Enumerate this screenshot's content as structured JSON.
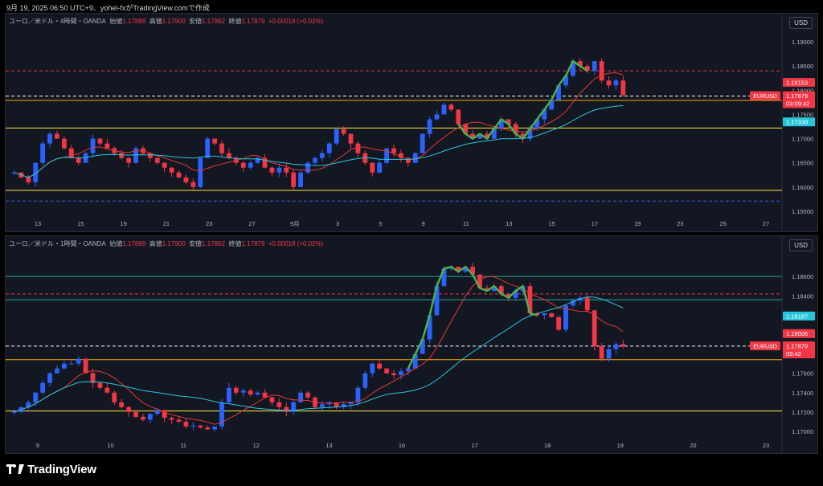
{
  "header_text": "9月 19, 2025 06:50 UTC+9、yohei-fxがTradingView.comで作成",
  "brand": "TradingView",
  "colors": {
    "up": "#26a69a",
    "bull": "#2962ff",
    "bear": "#f23645",
    "orange": "#f7a600",
    "yellow": "#ffeb3b",
    "teal": "#26c6da",
    "green": "#4caf50",
    "price": "#f23645"
  },
  "chart_data": [
    {
      "type": "candlestick",
      "symbol": "ユーロ／米ドル・4時間・OANDA",
      "ohlc": {
        "open_label": "始値",
        "open": "1.17889",
        "high_label": "高値",
        "high": "1.17900",
        "low_label": "安値",
        "low": "1.17862",
        "close_label": "終値",
        "close": "1.17879",
        "change": "+0.00018 (+0.02%)"
      },
      "currency": "USD",
      "y_ticks": [
        "1.19000",
        "1.18500",
        "1.18000",
        "1.17500",
        "1.17000",
        "1.16500",
        "1.16000",
        "1.15500"
      ],
      "y_range": [
        1.1535,
        1.1935
      ],
      "x_ticks": [
        "13",
        "15",
        "19",
        "21",
        "23",
        "27",
        "9月",
        "3",
        "5",
        "9",
        "11",
        "13",
        "15",
        "17",
        "19",
        "23",
        "25",
        "27"
      ],
      "price_labels": [
        {
          "text": "1.18153",
          "value": 1.18153,
          "color": "#f23645"
        },
        {
          "text": "1.17879",
          "value": 1.17879,
          "color": "#f23645",
          "symbol": "EURUSD",
          "timer": "03:09:42"
        },
        {
          "text": "1.17338",
          "value": 1.17338,
          "color": "#26c6da"
        }
      ],
      "hlines": [
        {
          "value": 1.184,
          "color": "#f23645",
          "style": "dashed"
        },
        {
          "value": 1.1788,
          "color": "#ffffff",
          "style": "dashed"
        },
        {
          "value": 1.1779,
          "color": "#f7a600",
          "style": "solid"
        },
        {
          "value": 1.1722,
          "color": "#ffeb3b",
          "style": "solid"
        },
        {
          "value": 1.1593,
          "color": "#ffeb3b",
          "style": "solid"
        },
        {
          "value": 1.1571,
          "color": "#2962ff",
          "style": "dashed"
        }
      ],
      "path": [
        1.163,
        1.162,
        1.161,
        1.165,
        1.169,
        1.171,
        1.17,
        1.168,
        1.166,
        1.165,
        1.167,
        1.17,
        1.169,
        1.168,
        1.167,
        1.166,
        1.165,
        1.168,
        1.167,
        1.166,
        1.165,
        1.164,
        1.163,
        1.162,
        1.161,
        1.16,
        1.166,
        1.17,
        1.169,
        1.167,
        1.166,
        1.165,
        1.164,
        1.165,
        1.166,
        1.164,
        1.163,
        1.164,
        1.163,
        1.16,
        1.163,
        1.165,
        1.166,
        1.167,
        1.169,
        1.172,
        1.171,
        1.169,
        1.167,
        1.165,
        1.163,
        1.165,
        1.168,
        1.167,
        1.166,
        1.165,
        1.167,
        1.171,
        1.174,
        1.175,
        1.177,
        1.176,
        1.173,
        1.171,
        1.17,
        1.171,
        1.17,
        1.172,
        1.174,
        1.173,
        1.171,
        1.17,
        1.172,
        1.174,
        1.176,
        1.178,
        1.181,
        1.183,
        1.186,
        1.185,
        1.184,
        1.186,
        1.182,
        1.181,
        1.182,
        1.179
      ]
    },
    {
      "type": "candlestick",
      "symbol": "ユーロ／米ドル・1時間・OANDA",
      "ohlc": {
        "open_label": "始値",
        "open": "1.17889",
        "high_label": "高値",
        "high": "1.17900",
        "low_label": "安値",
        "low": "1.17862",
        "close_label": "終値",
        "close": "1.17879",
        "change": "+0.00018 (+0.02%)"
      },
      "currency": "USD",
      "y_ticks": [
        "1.18600",
        "1.18400",
        "1.18200",
        "1.18000",
        "1.17800",
        "1.17600",
        "1.17400",
        "1.17200",
        "1.17000"
      ],
      "y_range": [
        1.169,
        1.189
      ],
      "x_ticks": [
        "9",
        "10",
        "11",
        "12",
        "13",
        "16",
        "17",
        "18",
        "19",
        "20",
        "23"
      ],
      "price_labels": [
        {
          "text": "1.18187",
          "value": 1.18187,
          "color": "#26c6da"
        },
        {
          "text": "1.18006",
          "value": 1.18006,
          "color": "#f23645"
        },
        {
          "text": "1.17879",
          "value": 1.17879,
          "color": "#f23645",
          "symbol": "EURUSD",
          "timer": "09:42"
        }
      ],
      "hlines": [
        {
          "value": 1.186,
          "color": "#26a69a",
          "style": "solid"
        },
        {
          "value": 1.1842,
          "color": "#f23645",
          "style": "dashed"
        },
        {
          "value": 1.1836,
          "color": "#26a69a",
          "style": "solid"
        },
        {
          "value": 1.1788,
          "color": "#ffffff",
          "style": "dashed"
        },
        {
          "value": 1.1774,
          "color": "#f7a600",
          "style": "solid"
        },
        {
          "value": 1.1721,
          "color": "#ffeb3b",
          "style": "solid"
        }
      ],
      "path": [
        1.172,
        1.1725,
        1.173,
        1.174,
        1.175,
        1.176,
        1.1765,
        1.177,
        1.177,
        1.1775,
        1.176,
        1.175,
        1.1745,
        1.174,
        1.173,
        1.1725,
        1.172,
        1.1715,
        1.1712,
        1.1718,
        1.1722,
        1.1714,
        1.1712,
        1.171,
        1.1705,
        1.1706,
        1.1704,
        1.1702,
        1.1705,
        1.173,
        1.1745,
        1.174,
        1.1742,
        1.1738,
        1.174,
        1.1735,
        1.173,
        1.1725,
        1.172,
        1.173,
        1.174,
        1.1735,
        1.1725,
        1.1728,
        1.173,
        1.1725,
        1.1728,
        1.173,
        1.1745,
        1.176,
        1.177,
        1.1765,
        1.176,
        1.1758,
        1.1762,
        1.1765,
        1.178,
        1.1795,
        1.182,
        1.185,
        1.1868,
        1.187,
        1.1865,
        1.187,
        1.1862,
        1.1848,
        1.1845,
        1.185,
        1.1842,
        1.1838,
        1.1845,
        1.185,
        1.1822,
        1.182,
        1.1822,
        1.1818,
        1.1805,
        1.183,
        1.1835,
        1.1838,
        1.1825,
        1.1788,
        1.1775,
        1.1785,
        1.179,
        1.1788
      ]
    }
  ]
}
